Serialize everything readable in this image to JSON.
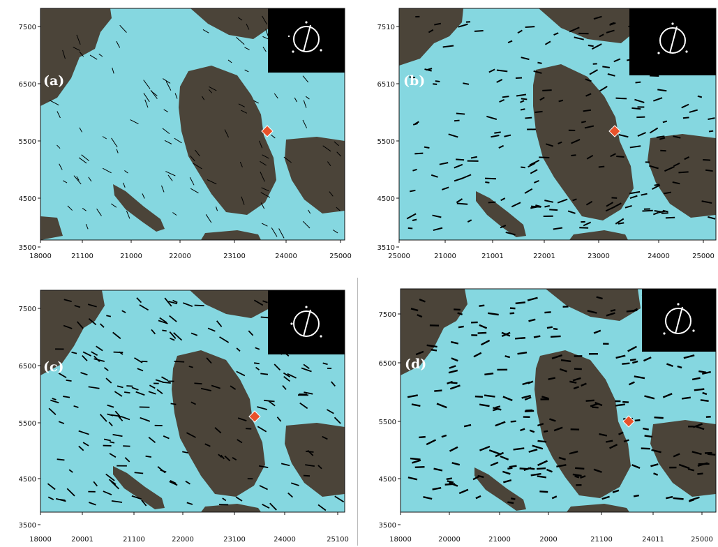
{
  "colors": {
    "water": "#85d7e0",
    "land": "#4b4439",
    "marker": "#e8522a",
    "arrows": "#000000",
    "inset_bg": "#000000",
    "compass": "#ffffff"
  },
  "panels": [
    {
      "id": "a",
      "label": "(a)",
      "y_ticks": [
        "7500",
        "6500",
        "5500",
        "4500",
        "3500"
      ],
      "x_ticks": [
        "18000",
        "21100",
        "21000",
        "22000",
        "23100",
        "24000",
        "25000"
      ],
      "arrow_density": "moderate",
      "flow": "mostly southward"
    },
    {
      "id": "b",
      "label": "(b)",
      "y_ticks": [
        "7510",
        "6510",
        "5500",
        "4500",
        "3510"
      ],
      "x_ticks": [
        "25000",
        "21000",
        "21001",
        "22001",
        "23000",
        "24000",
        "25000"
      ],
      "arrow_density": "dense",
      "flow": "westward and around island"
    },
    {
      "id": "c",
      "label": "(c)",
      "y_ticks": [
        "7500",
        "6500",
        "5500",
        "4500",
        "3500"
      ],
      "x_ticks": [
        "18000",
        "20001",
        "21100",
        "22000",
        "23100",
        "24000",
        "25100"
      ],
      "arrow_density": "dense",
      "flow": "south-eastward"
    },
    {
      "id": "d",
      "label": "(d)",
      "y_ticks": [
        "7500",
        "6500",
        "5500",
        "4500",
        "3500"
      ],
      "x_ticks": [
        "18000",
        "20000",
        "21000",
        "2000",
        "21100",
        "24011",
        "25000"
      ],
      "arrow_density": "very dense",
      "flow": "westward"
    }
  ]
}
